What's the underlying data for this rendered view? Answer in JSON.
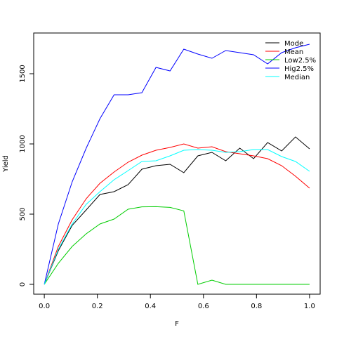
{
  "chart_data": {
    "type": "line",
    "xlabel": "F",
    "ylabel": "Yield",
    "xlim": [
      -0.04,
      1.04
    ],
    "ylim": [
      -70,
      1790
    ],
    "x_ticks": [
      "0.0",
      "0.2",
      "0.4",
      "0.6",
      "0.8",
      "1.0"
    ],
    "y_ticks": [
      "0",
      "500",
      "1000",
      "1500"
    ],
    "x_tick_values": [
      0,
      0.2,
      0.4,
      0.6,
      0.8,
      1.0
    ],
    "y_tick_values": [
      0,
      500,
      1000,
      1500
    ],
    "legend_position": "top-right",
    "x": [
      0,
      0.053,
      0.105,
      0.158,
      0.21,
      0.263,
      0.316,
      0.368,
      0.421,
      0.474,
      0.526,
      0.579,
      0.632,
      0.684,
      0.737,
      0.789,
      0.842,
      0.895,
      0.947,
      1.0
    ],
    "series": [
      {
        "name": "Mode",
        "color": "#000000",
        "values": [
          0,
          240,
          420,
          530,
          640,
          660,
          710,
          820,
          845,
          855,
          795,
          915,
          940,
          880,
          970,
          895,
          1010,
          950,
          1050,
          965
        ]
      },
      {
        "name": "Mean",
        "color": "#ff0000",
        "values": [
          0,
          270,
          460,
          610,
          720,
          800,
          870,
          920,
          955,
          975,
          1000,
          970,
          980,
          945,
          930,
          915,
          895,
          845,
          770,
          685
        ]
      },
      {
        "name": "Low2.5%",
        "color": "#00cd00",
        "values": [
          0,
          150,
          270,
          360,
          430,
          465,
          535,
          552,
          553,
          548,
          523,
          0,
          30,
          0,
          0,
          0,
          0,
          0,
          0,
          0
        ]
      },
      {
        "name": "Hig2.5%",
        "color": "#0000ff",
        "values": [
          0,
          430,
          730,
          970,
          1180,
          1350,
          1350,
          1365,
          1545,
          1520,
          1675,
          1640,
          1610,
          1665,
          1650,
          1635,
          1570,
          1650,
          1685,
          1710
        ]
      },
      {
        "name": "Median",
        "color": "#00ffff",
        "values": [
          0,
          250,
          430,
          570,
          660,
          745,
          810,
          875,
          880,
          915,
          955,
          960,
          955,
          940,
          945,
          960,
          960,
          910,
          875,
          805
        ]
      }
    ]
  }
}
